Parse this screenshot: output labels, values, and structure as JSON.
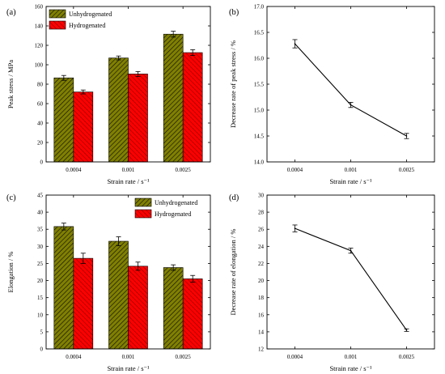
{
  "colors": {
    "unhydrogenated": "#808000",
    "hydrogenated": "#ff0000",
    "hatch": "#000000",
    "line": "#000000"
  },
  "chart_data": [
    {
      "id": "a",
      "panel_label": "(a)",
      "type": "bar",
      "categories": [
        "0.0004",
        "0.001",
        "0.0025"
      ],
      "series": [
        {
          "name": "Unhydrogenated",
          "values": [
            86.5,
            107,
            131.5
          ],
          "errors": [
            2.5,
            2,
            3
          ]
        },
        {
          "name": "Hydrogenated",
          "values": [
            72,
            90.5,
            112.5
          ],
          "errors": [
            2,
            2.5,
            3
          ]
        }
      ],
      "xlabel": "Strain rate / s⁻¹",
      "ylabel": "Peak stress / MPa",
      "ylim": [
        0,
        160
      ],
      "yticks": [
        "0",
        "20",
        "40",
        "60",
        "80",
        "100",
        "120",
        "140",
        "160"
      ],
      "legend": "top-left"
    },
    {
      "id": "b",
      "panel_label": "(b)",
      "type": "line",
      "categories": [
        "0.0004",
        "0.001",
        "0.0025"
      ],
      "series": [
        {
          "values": [
            16.28,
            15.1,
            14.5
          ],
          "errors": [
            0.08,
            0.05,
            0.05
          ]
        }
      ],
      "xlabel": "Strain rate / s⁻¹",
      "ylabel": "Decrease rate of peak stress / %",
      "ylim": [
        14.0,
        17.0
      ],
      "yticks": [
        "14.0",
        "14.5",
        "15.0",
        "15.5",
        "16.0",
        "16.5",
        "17.0"
      ]
    },
    {
      "id": "c",
      "panel_label": "(c)",
      "type": "bar",
      "categories": [
        "0.0004",
        "0.001",
        "0.0025"
      ],
      "series": [
        {
          "name": "Unhydrogenated",
          "values": [
            35.8,
            31.5,
            23.8
          ],
          "errors": [
            1,
            1.3,
            0.8
          ]
        },
        {
          "name": "Hydrogenated",
          "values": [
            26.5,
            24.2,
            20.5
          ],
          "errors": [
            1.5,
            1.2,
            1
          ]
        }
      ],
      "xlabel": "Strain rate / s⁻¹",
      "ylabel": "Elongation / %",
      "ylim": [
        0,
        45
      ],
      "yticks": [
        "0",
        "5",
        "10",
        "15",
        "20",
        "25",
        "30",
        "35",
        "40",
        "45"
      ],
      "legend": "top-right"
    },
    {
      "id": "d",
      "panel_label": "(d)",
      "type": "line",
      "categories": [
        "0.0004",
        "0.001",
        "0.0025"
      ],
      "series": [
        {
          "values": [
            26.1,
            23.5,
            14.2
          ],
          "errors": [
            0.4,
            0.3,
            0.15
          ]
        }
      ],
      "xlabel": "Strain rate / s⁻¹",
      "ylabel": "Decrease rate of elongation / %",
      "ylim": [
        12,
        30
      ],
      "yticks": [
        "12",
        "14",
        "16",
        "18",
        "20",
        "22",
        "24",
        "26",
        "28",
        "30"
      ]
    }
  ]
}
